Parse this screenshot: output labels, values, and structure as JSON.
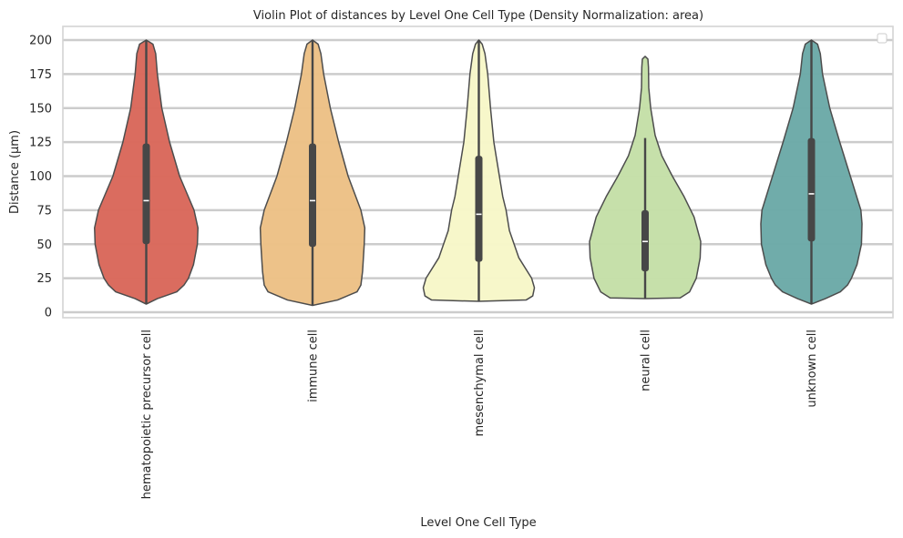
{
  "chart_data": {
    "type": "violin",
    "title": "Violin Plot of distances by Level One Cell Type (Density Normalization: area)",
    "xlabel": "Level One Cell Type",
    "ylabel": "Distance (µm)",
    "ylim": [
      -4,
      209
    ],
    "yticks": [
      0,
      25,
      50,
      75,
      100,
      125,
      150,
      175,
      200
    ],
    "grid": true,
    "legend": "top-right (empty)",
    "categories": [
      "hematopoietic precursor cell",
      "immune cell",
      "mesenchymal cell",
      "neural cell",
      "unknown cell"
    ],
    "series": [
      {
        "name": "hematopoietic precursor cell",
        "color": "#d9675a",
        "min": 6,
        "q1": 50,
        "median": 82,
        "q3": 124,
        "max": 200,
        "whisker_low": 6,
        "whisker_high": 200,
        "profile": [
          [
            6,
            0.0
          ],
          [
            10,
            0.2
          ],
          [
            15,
            0.55
          ],
          [
            20,
            0.68
          ],
          [
            25,
            0.76
          ],
          [
            35,
            0.85
          ],
          [
            50,
            0.92
          ],
          [
            62,
            0.93
          ],
          [
            75,
            0.86
          ],
          [
            100,
            0.6
          ],
          [
            125,
            0.42
          ],
          [
            150,
            0.28
          ],
          [
            175,
            0.2
          ],
          [
            190,
            0.17
          ],
          [
            197,
            0.12
          ],
          [
            200,
            0.0
          ]
        ]
      },
      {
        "name": "immune cell",
        "color": "#ecc085",
        "min": 5,
        "q1": 48,
        "median": 82,
        "q3": 124,
        "max": 200,
        "whisker_low": 5,
        "whisker_high": 200,
        "profile": [
          [
            5,
            0.0
          ],
          [
            9,
            0.45
          ],
          [
            15,
            0.8
          ],
          [
            20,
            0.87
          ],
          [
            30,
            0.9
          ],
          [
            50,
            0.93
          ],
          [
            62,
            0.94
          ],
          [
            75,
            0.87
          ],
          [
            100,
            0.64
          ],
          [
            125,
            0.47
          ],
          [
            150,
            0.32
          ],
          [
            175,
            0.2
          ],
          [
            190,
            0.15
          ],
          [
            197,
            0.1
          ],
          [
            200,
            0.0
          ]
        ]
      },
      {
        "name": "mesenchymal cell",
        "color": "#f7f7c8",
        "min": 8,
        "q1": 37,
        "median": 72,
        "q3": 115,
        "max": 200,
        "whisker_low": 8,
        "whisker_high": 200,
        "profile": [
          [
            8,
            0.0
          ],
          [
            9,
            0.85
          ],
          [
            12,
            0.97
          ],
          [
            18,
            1.0
          ],
          [
            25,
            0.95
          ],
          [
            40,
            0.72
          ],
          [
            60,
            0.55
          ],
          [
            75,
            0.49
          ],
          [
            85,
            0.43
          ],
          [
            100,
            0.37
          ],
          [
            125,
            0.27
          ],
          [
            150,
            0.21
          ],
          [
            175,
            0.16
          ],
          [
            190,
            0.11
          ],
          [
            197,
            0.06
          ],
          [
            200,
            0.0
          ]
        ]
      },
      {
        "name": "neural cell",
        "color": "#c4dfa7",
        "min": 10,
        "q1": 30,
        "median": 52,
        "q3": 75,
        "max": 188,
        "whisker_low": 10,
        "whisker_high": 128,
        "profile": [
          [
            10,
            0.0
          ],
          [
            10.5,
            0.63
          ],
          [
            15,
            0.8
          ],
          [
            25,
            0.92
          ],
          [
            40,
            0.99
          ],
          [
            52,
            1.0
          ],
          [
            70,
            0.88
          ],
          [
            85,
            0.7
          ],
          [
            100,
            0.49
          ],
          [
            115,
            0.3
          ],
          [
            130,
            0.18
          ],
          [
            150,
            0.1
          ],
          [
            165,
            0.065
          ],
          [
            180,
            0.06
          ],
          [
            186,
            0.05
          ],
          [
            188,
            0.0
          ]
        ]
      },
      {
        "name": "unknown cell",
        "color": "#6ba9a7",
        "min": 6,
        "q1": 52,
        "median": 87,
        "q3": 128,
        "max": 200,
        "whisker_low": 6,
        "whisker_high": 200,
        "profile": [
          [
            6,
            0.0
          ],
          [
            10,
            0.25
          ],
          [
            15,
            0.52
          ],
          [
            20,
            0.65
          ],
          [
            25,
            0.72
          ],
          [
            35,
            0.82
          ],
          [
            50,
            0.9
          ],
          [
            65,
            0.91
          ],
          [
            75,
            0.89
          ],
          [
            100,
            0.7
          ],
          [
            125,
            0.51
          ],
          [
            150,
            0.33
          ],
          [
            175,
            0.2
          ],
          [
            190,
            0.16
          ],
          [
            197,
            0.11
          ],
          [
            200,
            0.0
          ]
        ]
      }
    ]
  }
}
